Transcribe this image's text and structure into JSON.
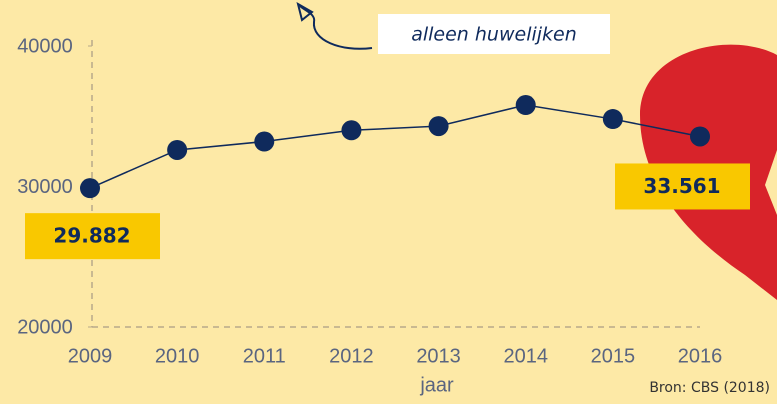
{
  "chart_data": {
    "type": "line",
    "annotation": "alleen huwelijken",
    "x_label": "jaar",
    "source": "Bron: CBS (2018)",
    "categories": [
      "2009",
      "2010",
      "2011",
      "2012",
      "2013",
      "2014",
      "2015",
      "2016"
    ],
    "series": [
      {
        "color": "#0f2a5c",
        "values": [
          29882,
          32600,
          33200,
          34000,
          34300,
          35800,
          34800,
          33561
        ],
        "value_labels": [
          "29.882",
          null,
          null,
          null,
          null,
          null,
          null,
          "33.561"
        ]
      }
    ],
    "ylim": [
      20000,
      40000
    ],
    "yticks": [
      20000,
      30000,
      40000
    ]
  }
}
